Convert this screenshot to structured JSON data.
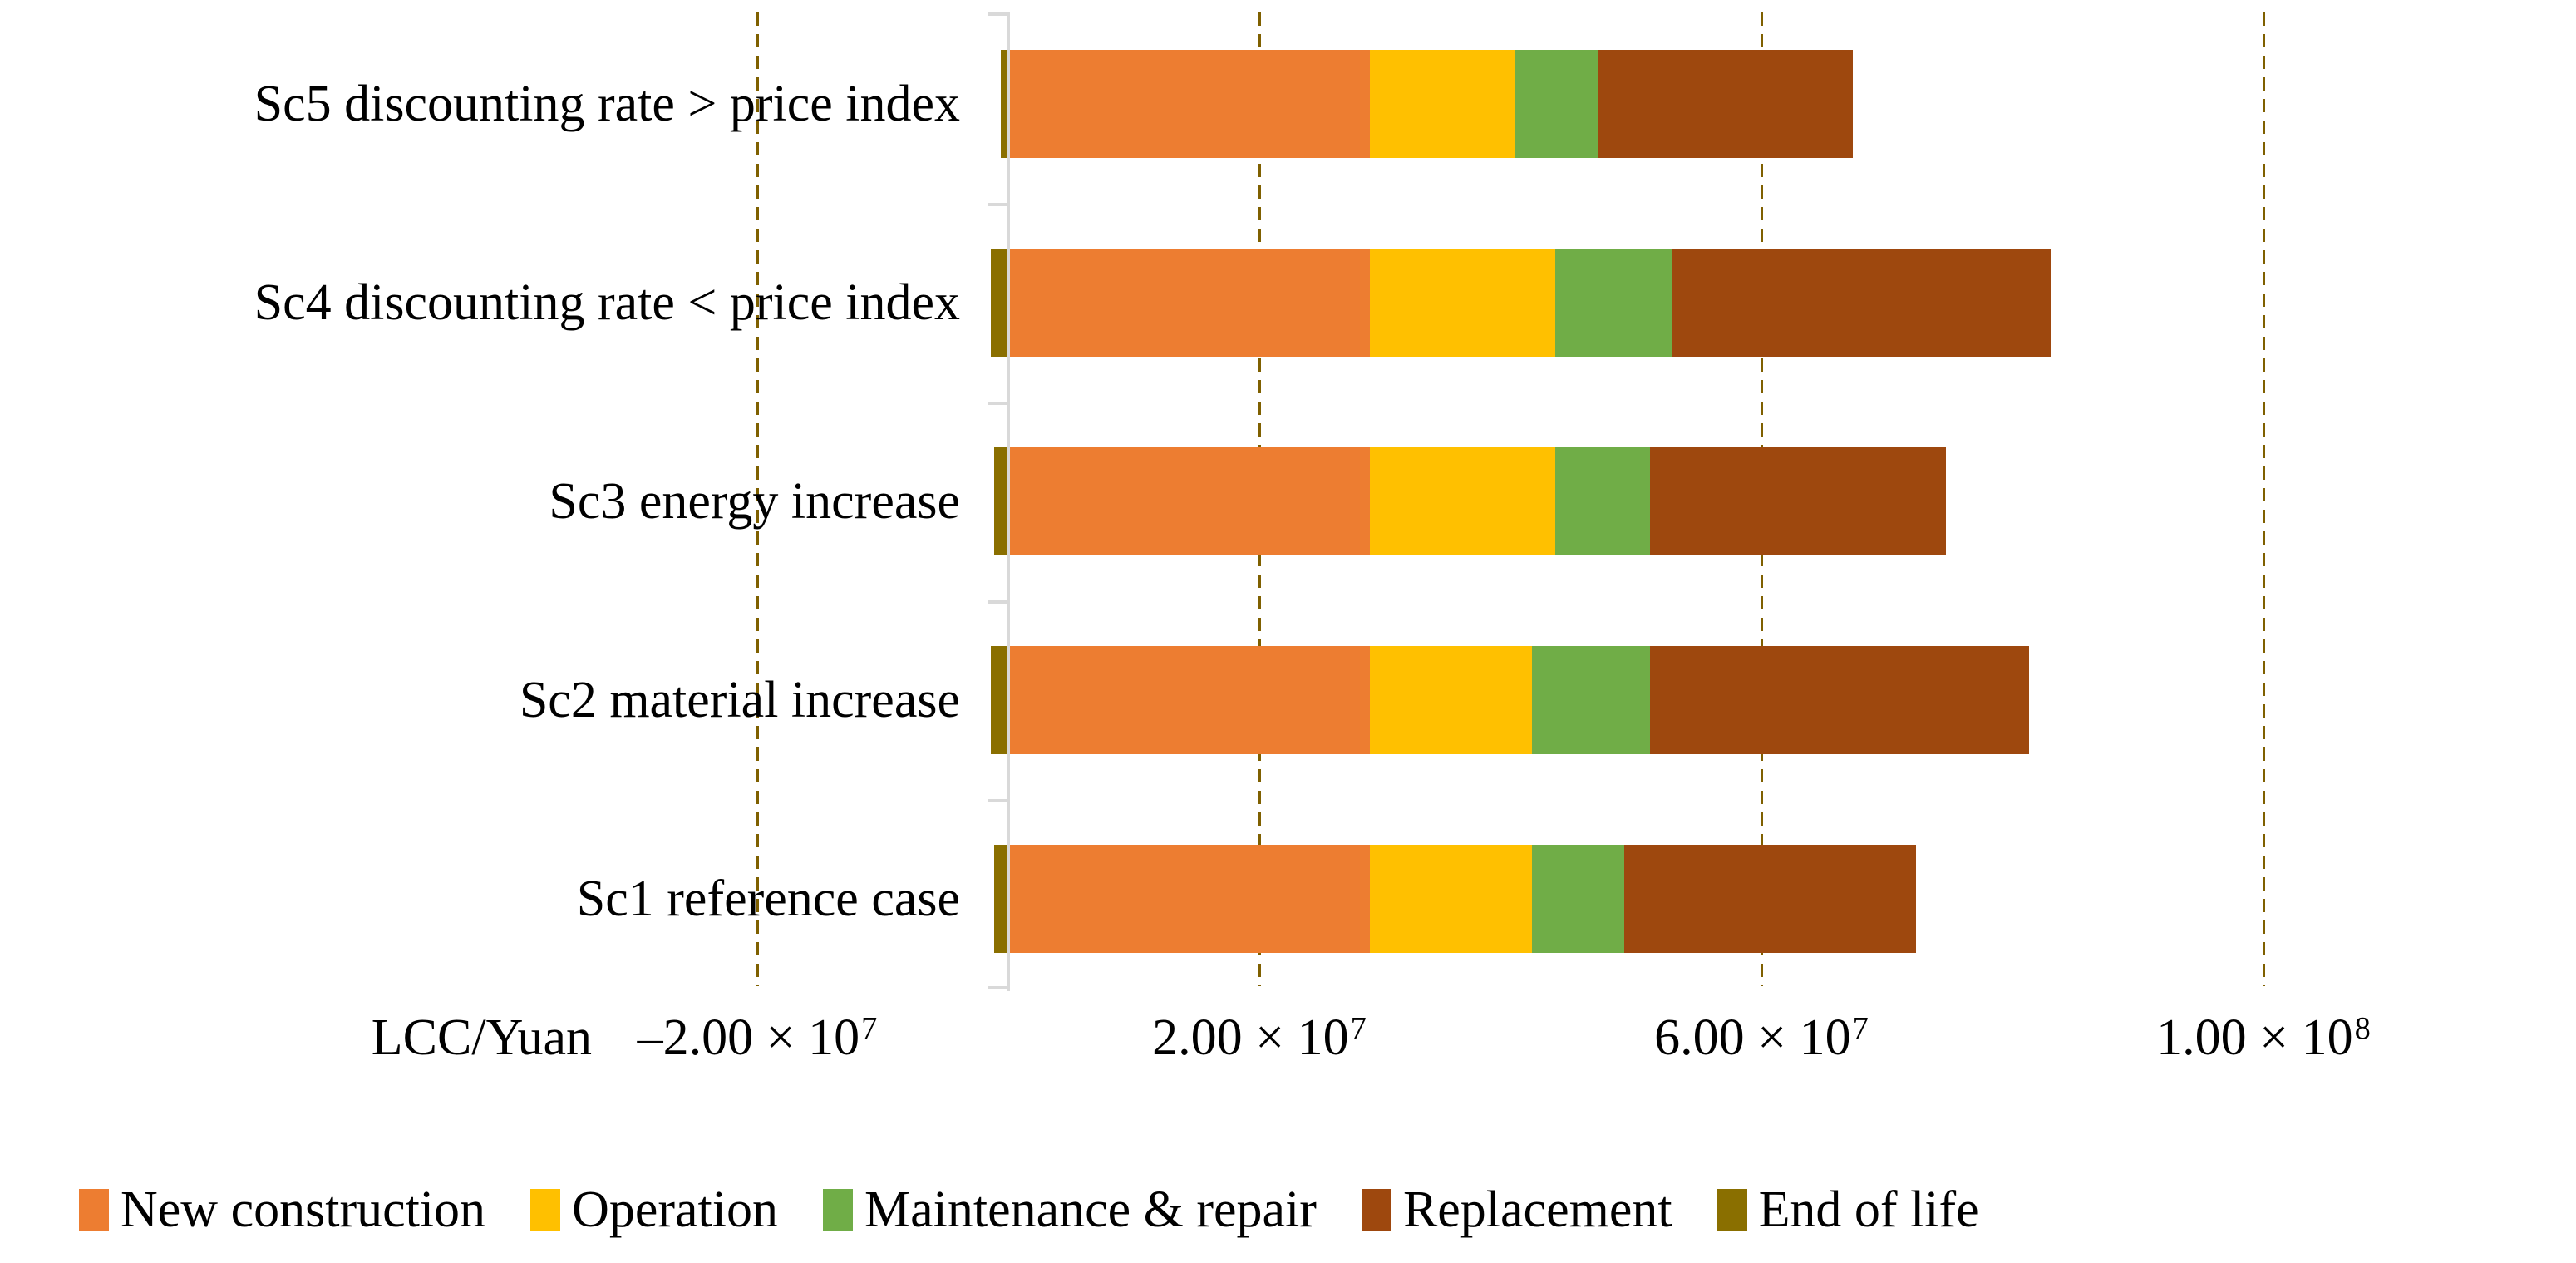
{
  "figure": {
    "background": "#FFFFFF",
    "font_color": "#000000"
  },
  "chart_data": {
    "type": "bar",
    "variant": "horizontal-stacked",
    "title": "",
    "xlabel": "LCC/Yuan",
    "unit": "Yuan",
    "categories_top_to_bottom": [
      "Sc5 discounting rate > price index",
      "Sc4 discounting rate < price index",
      "Sc3 energy increase",
      "Sc2 material increase",
      "Sc1 reference case"
    ],
    "series": [
      {
        "name": "New construction",
        "color": "#ED7D31",
        "values": [
          28800000,
          28800000,
          28800000,
          28800000,
          28800000
        ]
      },
      {
        "name": "Operation",
        "color": "#FFC000",
        "values": [
          11600000,
          14800000,
          14800000,
          12900000,
          12900000
        ]
      },
      {
        "name": "Maintenance & repair",
        "color": "#70AD47",
        "values": [
          6600000,
          9300000,
          7500000,
          9400000,
          7400000
        ]
      },
      {
        "name": "Replacement",
        "color": "#9E480E",
        "values": [
          20300000,
          30200000,
          23600000,
          30200000,
          23200000
        ]
      },
      {
        "name": "End of life",
        "color": "#8A6F00",
        "values": [
          -600000,
          -1400000,
          -1100000,
          -1400000,
          -1100000
        ]
      }
    ],
    "totals_top_to_bottom": [
      67300000,
      83100000,
      74700000,
      81300000,
      72300000
    ],
    "x_ticks": [
      {
        "value": -20000000,
        "mantissa": "–2.00 × 10",
        "exponent": "7"
      },
      {
        "value": 20000000,
        "mantissa": "2.00 × 10",
        "exponent": "7"
      },
      {
        "value": 60000000,
        "mantissa": "6.00 × 10",
        "exponent": "7"
      },
      {
        "value": 100000000,
        "mantissa": "1.00 × 10",
        "exponent": "8"
      }
    ],
    "axis_range": [
      -24000000,
      124000000
    ],
    "grid": {
      "show": true,
      "color": "#7F6000",
      "style": "dashed-vertical"
    },
    "axis_line_color": "#D9D9D9",
    "legend_position": "bottom"
  }
}
